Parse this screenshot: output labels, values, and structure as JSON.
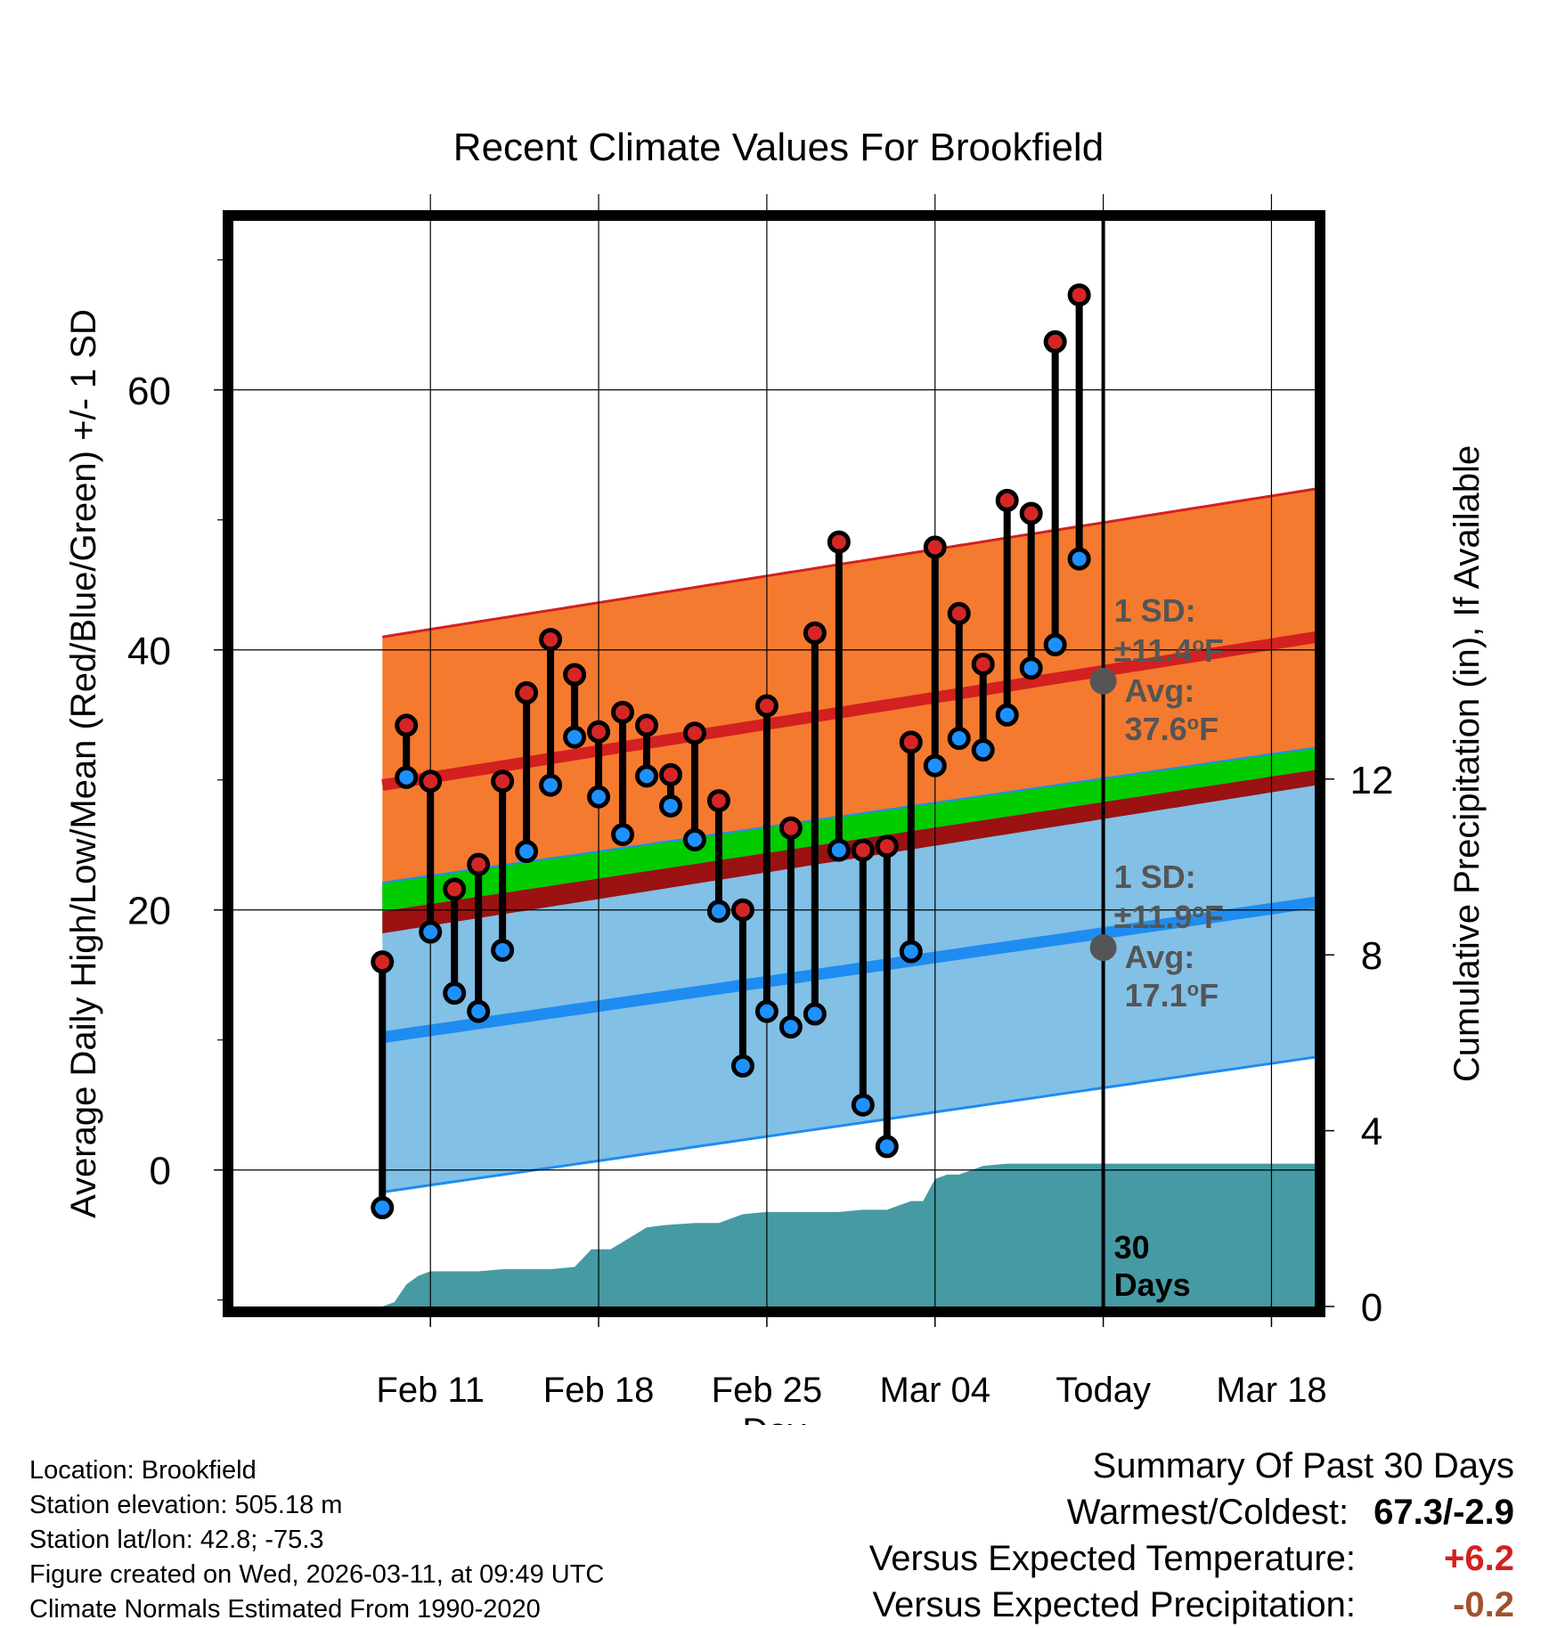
{
  "chart_data": {
    "type": "line",
    "title": "Recent Climate Values For Brookfield",
    "xlabel": "Day",
    "ylabel_left": "Average Daily High/Low/Mean (Red/Blue/Green) +/- 1 SD",
    "ylabel_right": "Cumulative Precipitation (in), If Available",
    "ylim_left": [
      -10.5,
      73
    ],
    "ylim_right": [
      0,
      24.7
    ],
    "xlim_days": [
      -36.2,
      8.8
    ],
    "x_ticks": [
      {
        "day": -28,
        "label": "Feb 11"
      },
      {
        "day": -21,
        "label": "Feb 18"
      },
      {
        "day": -14,
        "label": "Feb 25"
      },
      {
        "day": -7,
        "label": "Mar 04"
      },
      {
        "day": 0,
        "label": "Today"
      },
      {
        "day": 7,
        "label": "Mar 18"
      }
    ],
    "y_ticks_left": [
      0,
      20,
      40,
      60
    ],
    "y_ticks_right": [
      0,
      4,
      8,
      12
    ],
    "daily_temps": {
      "days": [
        -30,
        -29,
        -28,
        -27,
        -26,
        -25,
        -24,
        -23,
        -22,
        -21,
        -20,
        -19,
        -18,
        -17,
        -16,
        -15,
        -14,
        -13,
        -12,
        -11,
        -10,
        -9,
        -8,
        -7,
        -6,
        -5,
        -4,
        -3,
        -2,
        -1
      ],
      "highs": [
        16.0,
        34.2,
        29.9,
        21.6,
        23.5,
        29.9,
        36.7,
        40.8,
        38.1,
        33.7,
        35.2,
        34.2,
        30.4,
        33.6,
        28.4,
        20.0,
        35.7,
        26.3,
        41.3,
        48.3,
        24.6,
        24.9,
        32.9,
        47.9,
        42.8,
        38.9,
        51.5,
        50.5,
        63.7,
        67.3
      ],
      "lows": [
        -2.9,
        30.2,
        18.3,
        13.6,
        12.2,
        16.9,
        24.5,
        29.6,
        33.3,
        28.7,
        25.8,
        30.3,
        28.0,
        25.4,
        19.9,
        8.0,
        12.2,
        11.0,
        12.0,
        24.6,
        5.0,
        1.8,
        16.8,
        31.1,
        33.2,
        32.3,
        35.0,
        38.6,
        40.4,
        47.0
      ]
    },
    "normals": {
      "days": [
        -30,
        8.9
      ],
      "high_avg": [
        29.6,
        41.0
      ],
      "high_sd": 11.4,
      "low_avg": [
        10.2,
        20.6
      ],
      "low_sd": 11.9,
      "mean_avg": [
        19.9,
        30.8
      ]
    },
    "precip_cumulative": {
      "days": [
        -30,
        -29.5,
        -29,
        -28.5,
        -28,
        -27,
        -26,
        -25,
        -24,
        -23,
        -22,
        -21.3,
        -20.5,
        -19,
        -18.3,
        -17,
        -16,
        -15,
        -14,
        -13,
        -12,
        -11,
        -10,
        -9,
        -8,
        -7.5,
        -7,
        -6.5,
        -6,
        -5,
        -4,
        -3,
        -2,
        -1,
        0,
        8.9
      ],
      "values": [
        0.0,
        0.1,
        0.5,
        0.7,
        0.8,
        0.8,
        0.8,
        0.85,
        0.85,
        0.85,
        0.9,
        1.3,
        1.3,
        1.8,
        1.85,
        1.9,
        1.9,
        2.1,
        2.15,
        2.15,
        2.15,
        2.15,
        2.2,
        2.2,
        2.4,
        2.4,
        2.9,
        3.0,
        3.0,
        3.2,
        3.25,
        3.25,
        3.25,
        3.25,
        3.25,
        3.25
      ]
    },
    "today_high_label": {
      "line1": "1 SD:",
      "line2": "±11.4",
      "unit": "F",
      "line3": "Avg:",
      "line4": "37.6",
      "value": 37.6
    },
    "today_low_label": {
      "line1": "1 SD:",
      "line2": "±11.9",
      "unit": "F",
      "line3": "Avg:",
      "line4": "17.1",
      "value": 17.1
    },
    "deg_sign": "o",
    "today_days_label": {
      "line1": "30",
      "line2": "Days"
    },
    "colors": {
      "high_band": "#f47a30",
      "high_line": "#d32020",
      "low_band": "#82c0e6",
      "low_line": "#1e8cf0",
      "mean_band": "#00cc00",
      "overlap_band": "#9a1212",
      "precip": "#469aa3",
      "marker_high": "#d52626",
      "marker_low": "#1e90ff",
      "label_gray": "#555555"
    }
  },
  "info": {
    "location": "Location: Brookfield",
    "elevation": "Station elevation: 505.18 m",
    "latlon": "Station lat/lon: 42.8; -75.3",
    "created": "Figure created on Wed, 2026-03-11, at 09:49 UTC",
    "normals": "Climate Normals Estimated From 1990-2020"
  },
  "summary": {
    "title": "Summary Of Past 30 Days",
    "warm_cold_label": "Warmest/Coldest:",
    "warm_cold_value": "67.3/-2.9",
    "temp_label": "Versus Expected Temperature:",
    "temp_value": "+6.2",
    "temp_color": "#d32020",
    "precip_label": "Versus Expected Precipitation:",
    "precip_value": "-0.2",
    "precip_color": "#a0522d"
  }
}
